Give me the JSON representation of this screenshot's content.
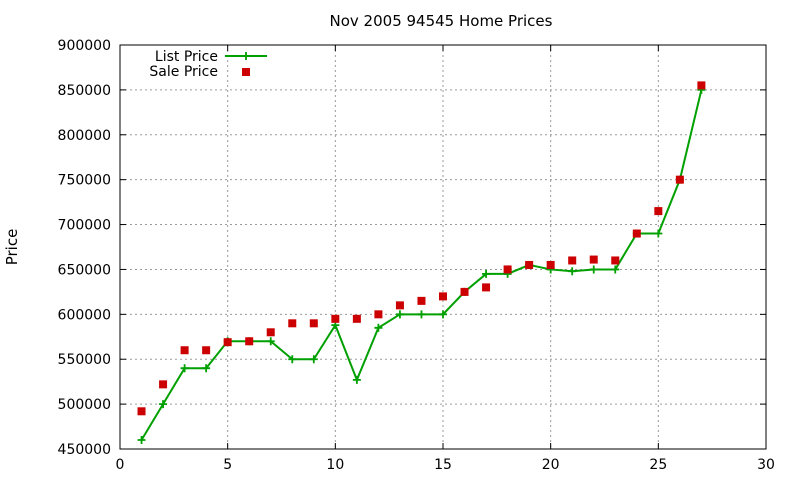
{
  "chart_data": {
    "type": "line",
    "title": "Nov 2005 94545 Home Prices",
    "xlabel": "",
    "ylabel": "Price",
    "xlim": [
      0,
      30
    ],
    "ylim": [
      450000,
      900000
    ],
    "x_ticks": [
      "0",
      "5",
      "10",
      "15",
      "20",
      "25",
      "30"
    ],
    "y_ticks": [
      "450000",
      "500000",
      "550000",
      "600000",
      "650000",
      "700000",
      "750000",
      "800000",
      "850000",
      "900000"
    ],
    "grid": true,
    "legend_position": "top-left",
    "series": [
      {
        "name": "List Price",
        "style": "line-with-plus-markers",
        "color": "#00a000",
        "x": [
          1,
          2,
          3,
          4,
          5,
          6,
          7,
          8,
          9,
          10,
          11,
          12,
          13,
          14,
          15,
          16,
          17,
          18,
          19,
          20,
          21,
          22,
          23,
          24,
          25,
          26,
          27
        ],
        "y": [
          460000,
          500000,
          540000,
          540000,
          570000,
          570000,
          570000,
          550000,
          550000,
          588000,
          527000,
          585000,
          600000,
          600000,
          600000,
          625000,
          645000,
          645000,
          655000,
          650000,
          648000,
          650000,
          650000,
          690000,
          690000,
          750000,
          850000
        ]
      },
      {
        "name": "Sale Price",
        "style": "square-markers",
        "color": "#cc0000",
        "x": [
          1,
          2,
          3,
          4,
          5,
          6,
          7,
          8,
          9,
          10,
          11,
          12,
          13,
          14,
          15,
          16,
          17,
          18,
          19,
          20,
          21,
          22,
          23,
          24,
          25,
          26,
          27
        ],
        "y": [
          492000,
          522000,
          560000,
          560000,
          569000,
          570000,
          580000,
          590000,
          590000,
          595000,
          595000,
          600000,
          610000,
          615000,
          620000,
          625000,
          630000,
          650000,
          655000,
          655000,
          660000,
          661000,
          660000,
          690000,
          715000,
          750000,
          855000
        ]
      }
    ]
  }
}
